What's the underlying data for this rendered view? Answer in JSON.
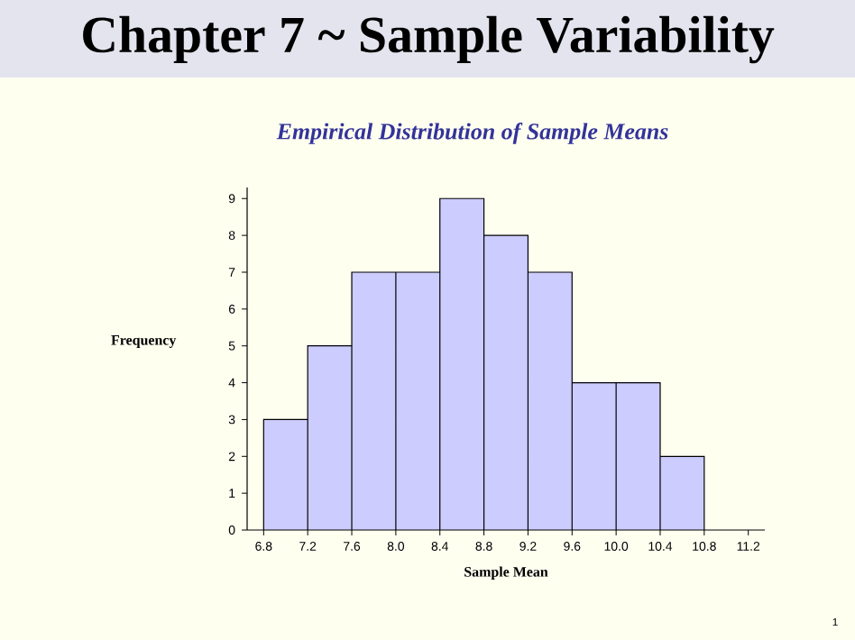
{
  "chart_data": {
    "type": "histogram",
    "title": "Chapter 7 ~ Sample Variability",
    "subtitle": "Empirical Distribution of Sample Means",
    "xlabel": "Sample Mean",
    "ylabel": "Frequency",
    "bins": [
      6.8,
      7.2,
      7.6,
      8.0,
      8.4,
      8.8,
      9.2,
      9.6,
      10.0,
      10.4,
      10.8
    ],
    "values": [
      3,
      5,
      7,
      7,
      9,
      8,
      7,
      4,
      4,
      2
    ],
    "color": "#ccccff",
    "xlim": [
      6.65,
      11.35
    ],
    "ylim": [
      0,
      9.3
    ],
    "xticks": [
      6.8,
      7.2,
      7.6,
      {
        "value": 8,
        "label": "8.0"
      },
      8.4,
      8.8,
      9.2,
      9.6,
      {
        "value": 10,
        "label": "10.0"
      },
      10.4,
      10.8,
      11.2
    ],
    "yticks": [
      0,
      1,
      2,
      3,
      4,
      5,
      6,
      7,
      8,
      9
    ],
    "annotations": [
      "1"
    ]
  }
}
